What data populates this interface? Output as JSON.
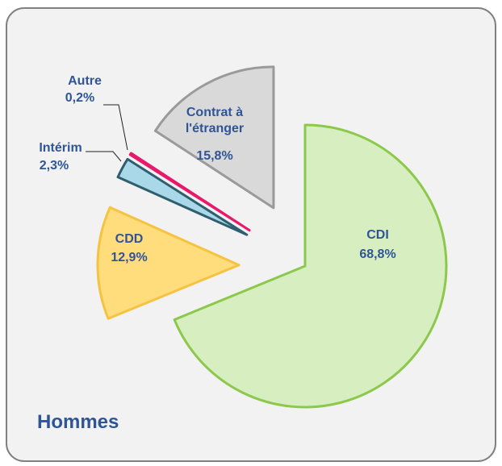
{
  "chart_data": {
    "type": "pie",
    "title": "Hommes",
    "categories": [
      "CDI",
      "CDD",
      "Intérim",
      "Autre",
      "Contrat à l'étranger"
    ],
    "values": [
      68.8,
      12.9,
      2.3,
      0.2,
      15.8
    ],
    "value_labels": [
      "68,8%",
      "12,9%",
      "2,3%",
      "0,2%",
      "15,8%"
    ],
    "colors": [
      "#d7efc0",
      "#ffdc7c",
      "#a9d9e8",
      "#e8196b",
      "#d9d9d9"
    ],
    "edge_colors": [
      "#8cc84b",
      "#f5c342",
      "#2f5e6e",
      "#e8196b",
      "#9a9a9a"
    ]
  }
}
